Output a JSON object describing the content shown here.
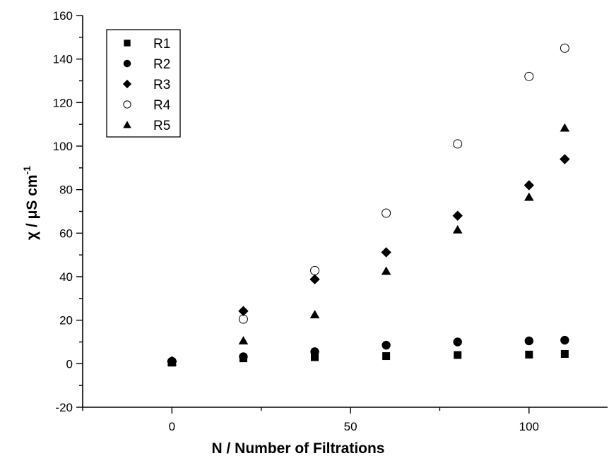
{
  "chart_data": {
    "type": "scatter",
    "title": "",
    "xlabel": "N / Number of Filtrations",
    "ylabel": "χ / μS cm",
    "ylabel_superscript": "-1",
    "xlim": [
      -25,
      122
    ],
    "ylim": [
      -20,
      160
    ],
    "xticks": [
      0,
      50,
      100
    ],
    "yticks": [
      -20,
      0,
      20,
      40,
      60,
      80,
      100,
      120,
      140,
      160
    ],
    "x_minor_step": 25,
    "y_minor_step": 10,
    "grid": false,
    "legend_position": "top-left",
    "series": [
      {
        "name": "R1",
        "marker": "square",
        "x": [
          0,
          20,
          40,
          60,
          80,
          100,
          110
        ],
        "y": [
          0.5,
          2.5,
          3,
          3.5,
          4,
          4.2,
          4.5
        ]
      },
      {
        "name": "R2",
        "marker": "circle",
        "x": [
          0,
          20,
          40,
          60,
          80,
          100,
          110
        ],
        "y": [
          1,
          3.2,
          5.5,
          8.5,
          10,
          10.5,
          10.8
        ]
      },
      {
        "name": "R3",
        "marker": "diamond",
        "x": [
          0,
          20,
          40,
          60,
          80,
          100,
          110
        ],
        "y": [
          1.2,
          24.2,
          38.8,
          51.2,
          68,
          82,
          94
        ]
      },
      {
        "name": "R4",
        "marker": "open-circle",
        "x": [
          0,
          20,
          40,
          60,
          80,
          100,
          110
        ],
        "y": [
          1,
          20.5,
          42.8,
          69.2,
          101,
          132,
          145
        ]
      },
      {
        "name": "R5",
        "marker": "triangle",
        "x": [
          0,
          20,
          40,
          60,
          80,
          100,
          110
        ],
        "y": [
          0.8,
          10.5,
          22.5,
          42.5,
          61.5,
          76.5,
          108.3
        ]
      }
    ]
  }
}
